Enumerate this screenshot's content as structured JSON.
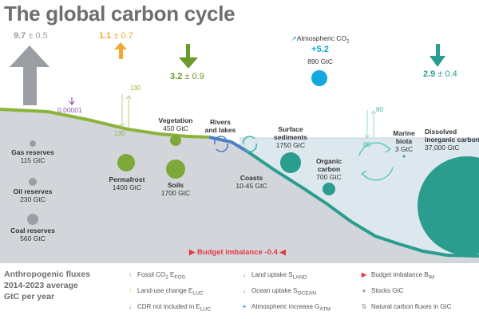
{
  "title": "The global carbon cycle",
  "fluxes": {
    "fossil": {
      "value": "9.7",
      "unc": "± 0.5"
    },
    "land_use": {
      "value": "1.1",
      "unc": "± 0.7"
    },
    "land_uptake": {
      "value": "3.2",
      "unc": "± 0.9"
    },
    "atmospheric_increase": {
      "label": "Atmospheric CO",
      "sub": "2",
      "value": "+5.2",
      "stock": "890 GtC"
    },
    "ocean_uptake": {
      "value": "2.9",
      "unc": "± 0.4"
    },
    "cdr": "0.00001",
    "budget_imbalance": "Budget imbalance -0.4"
  },
  "natural_fluxes": {
    "land_up": "130",
    "land_down": "130",
    "ocean_up": "80",
    "ocean_down": "80"
  },
  "stocks": {
    "gas": {
      "name": "Gas reserves",
      "value": "115 GtC"
    },
    "oil": {
      "name": "Oil reserves",
      "value": "230 GtC"
    },
    "coal": {
      "name": "Coal reserves",
      "value": "560 GtC"
    },
    "permafrost": {
      "name": "Permafrost",
      "value": "1400 GtC"
    },
    "vegetation": {
      "name": "Vegetation",
      "value": "450 GtC"
    },
    "soils": {
      "name": "Soils",
      "value": "1700 GtC"
    },
    "rivers": {
      "name1": "Rivers",
      "name2": "and lakes"
    },
    "coasts": {
      "name": "Coasts",
      "value": "10-45 GtC"
    },
    "sediments": {
      "name1": "Surface",
      "name2": "sediments",
      "value": "1750 GtC"
    },
    "organic": {
      "name1": "Organic",
      "name2": "carbon",
      "value": "700 GtC"
    },
    "marine": {
      "name1": "Marine",
      "name2": "biota",
      "value": "3 GtC"
    },
    "dissolved": {
      "name1": "Dissolved",
      "name2": "inorganic carbon",
      "value": "37,000 GtC"
    }
  },
  "legend": {
    "title_lines": [
      "Anthropogenic fluxes",
      "2014-2023 average",
      "GtC per year"
    ],
    "items": [
      {
        "text": "Fossil CO",
        "sub": "2",
        "tail": " E",
        "tailsub": "FOS",
        "color": "#9b9fa3",
        "icon": "up-arrow-icon"
      },
      {
        "text": "Land-use change E",
        "sub": "LUC",
        "color": "#f0a830",
        "icon": "up-arrow-icon"
      },
      {
        "text": "CDR not included in E",
        "sub": "LUC",
        "color": "#8a5aa8",
        "icon": "down-arrow-icon"
      },
      {
        "text": "Land uptake S",
        "sub": "LAND",
        "color": "#6b9a2c",
        "icon": "down-arrow-icon"
      },
      {
        "text": "Ocean uptake S",
        "sub": "OCEAN",
        "color": "#2a9d8f",
        "icon": "down-arrow-icon"
      },
      {
        "text": "Atmospheric increase G",
        "sub": "ATM",
        "color": "#0aa5d8",
        "icon": "plus-icon"
      },
      {
        "text": "Budget imbalance B",
        "sub": "IM",
        "color": "#e63946",
        "icon": "triangle-icon"
      },
      {
        "text": "Stocks GtC",
        "sub": "",
        "color": "#9b9fa3",
        "icon": "circle-icon"
      },
      {
        "text": "Natural carbon fluxes in GtC",
        "sub": "",
        "color": "#b0b4b8",
        "icon": "updown-arrow-icon"
      }
    ]
  },
  "colors": {
    "fossil": "#9b9fa3",
    "land_use": "#f0a830",
    "land": "#7da83a",
    "ocean": "#2a9d8f",
    "atmos": "#14a8e0",
    "cdr": "#8a5aa8",
    "imbalance": "#e63946"
  }
}
